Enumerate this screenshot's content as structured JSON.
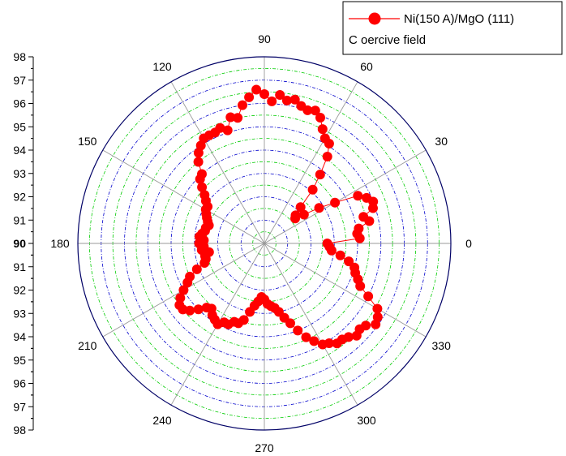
{
  "chart_data": {
    "type": "scatter",
    "subtype": "polar",
    "title": "",
    "legend": {
      "placement": "top-right",
      "entries": [
        {
          "label": "Ni(150 A)/MgO (111)"
        },
        {
          "label": "C oercive field"
        }
      ]
    },
    "angle_labels": [
      "0",
      "30",
      "60",
      "90",
      "120",
      "150",
      "180",
      "210",
      "240",
      "270",
      "300",
      "330"
    ],
    "radial_axis": {
      "range": [
        90,
        98
      ],
      "tick_labels_upper": [
        "98",
        "97",
        "96",
        "95",
        "94",
        "93",
        "92",
        "91",
        "90"
      ],
      "tick_labels_lower": [
        "91",
        "92",
        "93",
        "94",
        "95",
        "96",
        "97",
        "98"
      ],
      "grid": true
    },
    "series": [
      {
        "name": "Ni(150 A)/MgO (111)",
        "color": "#ff0000",
        "marker": "circle",
        "line": true,
        "points": [
          [
            0,
            92.7
          ],
          [
            3,
            94.1
          ],
          [
            6,
            94.0
          ],
          [
            9,
            94.1
          ],
          [
            12,
            94.6
          ],
          [
            15,
            94.4
          ],
          [
            18,
            94.9
          ],
          [
            21,
            95.0
          ],
          [
            24,
            94.8
          ],
          [
            27,
            94.5
          ],
          [
            30,
            93.5
          ],
          [
            33,
            92.8
          ],
          [
            36,
            92.1
          ],
          [
            39,
            91.7
          ],
          [
            42,
            91.8
          ],
          [
            45,
            92.2
          ],
          [
            48,
            93.1
          ],
          [
            51,
            93.8
          ],
          [
            54,
            94.6
          ],
          [
            57,
            95.1
          ],
          [
            60,
            95.2
          ],
          [
            63,
            95.5
          ],
          [
            66,
            95.9
          ],
          [
            69,
            96.1
          ],
          [
            72,
            96.0
          ],
          [
            75,
            96.1
          ],
          [
            78,
            96.3
          ],
          [
            81,
            96.2
          ],
          [
            84,
            96.4
          ],
          [
            87,
            96.1
          ],
          [
            90,
            96.4
          ],
          [
            93,
            96.6
          ],
          [
            96,
            96.3
          ],
          [
            99,
            96.0
          ],
          [
            102,
            95.5
          ],
          [
            105,
            95.6
          ],
          [
            108,
            95.1
          ],
          [
            111,
            95.3
          ],
          [
            114,
            95.2
          ],
          [
            117,
            95.2
          ],
          [
            120,
            95.2
          ],
          [
            123,
            95.0
          ],
          [
            126,
            94.8
          ],
          [
            129,
            94.5
          ],
          [
            132,
            94.0
          ],
          [
            135,
            93.9
          ],
          [
            138,
            93.6
          ],
          [
            141,
            93.3
          ],
          [
            144,
            93.1
          ],
          [
            147,
            92.9
          ],
          [
            150,
            92.9
          ],
          [
            153,
            92.8
          ],
          [
            156,
            92.7
          ],
          [
            159,
            92.6
          ],
          [
            162,
            92.5
          ],
          [
            165,
            92.6
          ],
          [
            168,
            92.6
          ],
          [
            171,
            92.7
          ],
          [
            174,
            92.8
          ],
          [
            177,
            92.6
          ],
          [
            180,
            92.8
          ],
          [
            183,
            92.6
          ],
          [
            186,
            92.7
          ],
          [
            189,
            92.4
          ],
          [
            192,
            92.6
          ],
          [
            195,
            92.6
          ],
          [
            198,
            92.7
          ],
          [
            201,
            93.1
          ],
          [
            204,
            93.5
          ],
          [
            207,
            93.7
          ],
          [
            210,
            94.0
          ],
          [
            213,
            94.3
          ],
          [
            216,
            94.5
          ],
          [
            219,
            94.5
          ],
          [
            222,
            94.3
          ],
          [
            225,
            94.0
          ],
          [
            228,
            93.7
          ],
          [
            231,
            93.6
          ],
          [
            234,
            93.8
          ],
          [
            237,
            93.9
          ],
          [
            240,
            94.0
          ],
          [
            243,
            93.8
          ],
          [
            246,
            93.8
          ],
          [
            249,
            93.6
          ],
          [
            252,
            93.6
          ],
          [
            255,
            93.4
          ],
          [
            258,
            93.0
          ],
          [
            261,
            92.7
          ],
          [
            264,
            92.5
          ],
          [
            267,
            92.3
          ],
          [
            270,
            92.4
          ],
          [
            273,
            92.6
          ],
          [
            276,
            92.7
          ],
          [
            279,
            92.8
          ],
          [
            282,
            93.0
          ],
          [
            285,
            93.3
          ],
          [
            288,
            93.6
          ],
          [
            291,
            94.0
          ],
          [
            294,
            94.4
          ],
          [
            297,
            94.7
          ],
          [
            300,
            95.0
          ],
          [
            303,
            95.1
          ],
          [
            306,
            95.3
          ],
          [
            309,
            95.3
          ],
          [
            312,
            95.4
          ],
          [
            315,
            95.6
          ],
          [
            318,
            95.5
          ],
          [
            321,
            95.6
          ],
          [
            324,
            95.9
          ],
          [
            327,
            95.8
          ],
          [
            330,
            95.6
          ],
          [
            333,
            95.0
          ],
          [
            336,
            94.5
          ],
          [
            339,
            94.3
          ],
          [
            342,
            94.1
          ],
          [
            345,
            94.0
          ],
          [
            348,
            93.7
          ],
          [
            351,
            93.3
          ],
          [
            354,
            92.9
          ],
          [
            357,
            92.8
          ]
        ]
      }
    ]
  }
}
